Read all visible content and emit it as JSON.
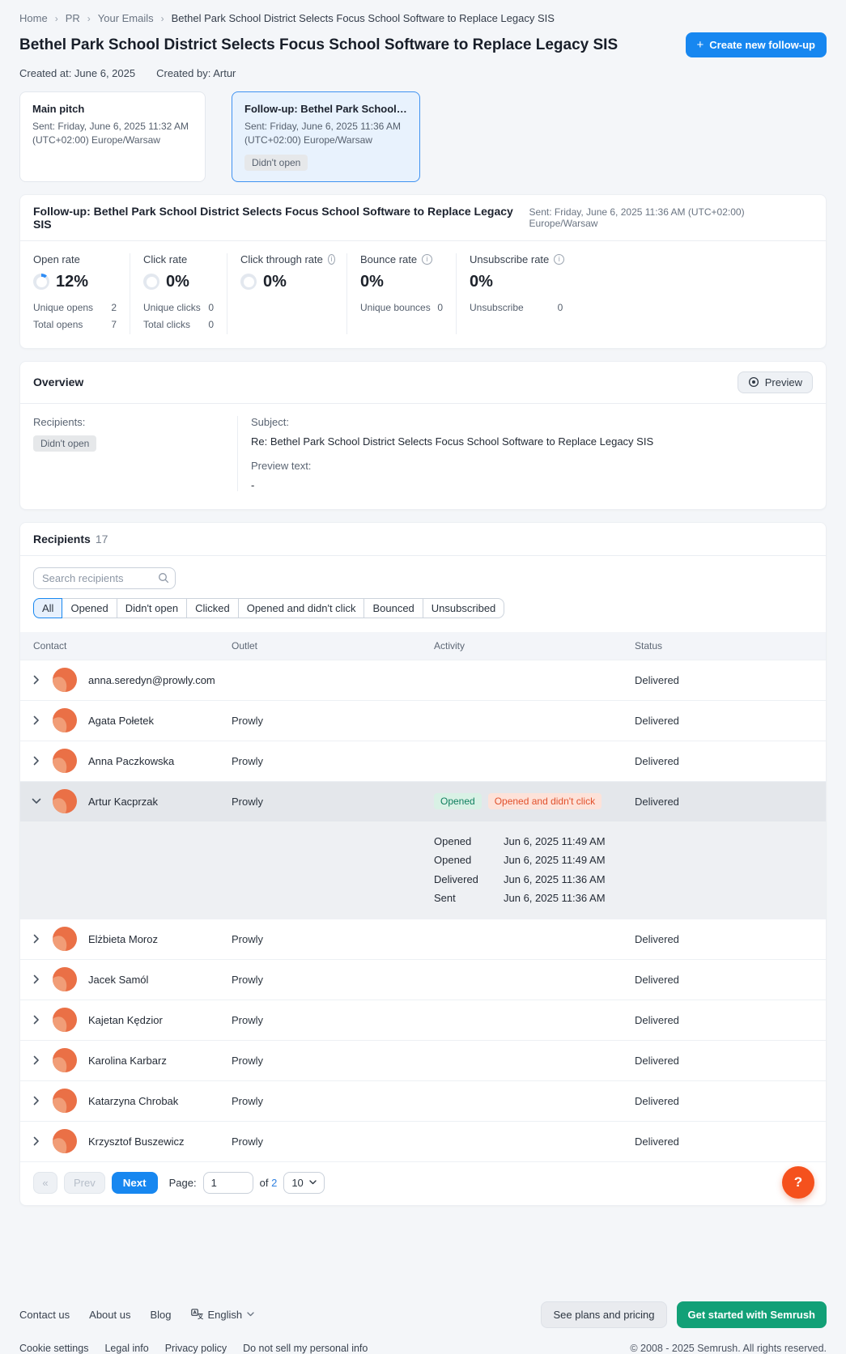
{
  "breadcrumb": {
    "items": [
      "Home",
      "PR",
      "Your Emails"
    ],
    "current": "Bethel Park School District Selects Focus School Software to Replace Legacy SIS"
  },
  "header": {
    "title": "Bethel Park School District Selects Focus School Software to Replace Legacy SIS",
    "create_button": "Create new follow-up",
    "created_at": "Created at: June 6, 2025",
    "created_by": "Created by: Artur"
  },
  "cards": [
    {
      "title": "Main pitch",
      "sent": "Sent: Friday, June 6, 2025 11:32 AM (UTC+02:00) Europe/Warsaw",
      "badge": null,
      "selected": false
    },
    {
      "title": "Follow-up: Bethel Park School Dist...",
      "sent": "Sent: Friday, June 6, 2025 11:36 AM (UTC+02:00) Europe/Warsaw",
      "badge": "Didn't open",
      "selected": true
    }
  ],
  "stats_panel": {
    "title": "Follow-up: Bethel Park School District Selects Focus School Software to Replace Legacy SIS",
    "sent": "Sent: Friday, June 6, 2025 11:36 AM (UTC+02:00) Europe/Warsaw",
    "metrics": [
      {
        "label": "Open rate",
        "info": false,
        "value": "12%",
        "donut": 12,
        "rows": [
          {
            "label": "Unique opens",
            "value": "2"
          },
          {
            "label": "Total opens",
            "value": "7"
          }
        ]
      },
      {
        "label": "Click rate",
        "info": false,
        "value": "0%",
        "donut": 0,
        "rows": [
          {
            "label": "Unique clicks",
            "value": "0"
          },
          {
            "label": "Total clicks",
            "value": "0"
          }
        ]
      },
      {
        "label": "Click through rate",
        "info": true,
        "value": "0%",
        "donut": 0,
        "rows": []
      },
      {
        "label": "Bounce rate",
        "info": true,
        "value": "0%",
        "donut": null,
        "rows": [
          {
            "label": "Unique bounces",
            "value": "0"
          }
        ]
      },
      {
        "label": "Unsubscribe rate",
        "info": true,
        "value": "0%",
        "donut": null,
        "rows": [
          {
            "label": "Unsubscribe",
            "value": "0"
          }
        ]
      }
    ]
  },
  "overview": {
    "title": "Overview",
    "preview_button": "Preview",
    "recipients_label": "Recipients:",
    "recipients_badge": "Didn't open",
    "subject_label": "Subject:",
    "subject": "Re: Bethel Park School District Selects Focus School Software to Replace Legacy SIS",
    "preview_text_label": "Preview text:",
    "preview_text": "-"
  },
  "recipients": {
    "title": "Recipients",
    "count": "17",
    "search_placeholder": "Search recipients",
    "filters": [
      "All",
      "Opened",
      "Didn't open",
      "Clicked",
      "Opened and didn't click",
      "Bounced",
      "Unsubscribed"
    ],
    "active_filter": "All",
    "columns": [
      "Contact",
      "Outlet",
      "Activity",
      "Status"
    ],
    "rows": [
      {
        "contact": "anna.seredyn@prowly.com",
        "outlet": "",
        "activity": [],
        "status": "Delivered",
        "expanded": false
      },
      {
        "contact": "Agata Połetek",
        "outlet": "Prowly",
        "activity": [],
        "status": "Delivered",
        "expanded": false
      },
      {
        "contact": "Anna Paczkowska",
        "outlet": "Prowly",
        "activity": [],
        "status": "Delivered",
        "expanded": false
      },
      {
        "contact": "Artur Kacprzak",
        "outlet": "Prowly",
        "activity": [
          {
            "label": "Opened",
            "type": "opened"
          },
          {
            "label": "Opened and didn't click",
            "type": "no-click"
          }
        ],
        "status": "Delivered",
        "expanded": true,
        "details": [
          {
            "event": "Opened",
            "time": "Jun 6, 2025 11:49 AM"
          },
          {
            "event": "Opened",
            "time": "Jun 6, 2025 11:49 AM"
          },
          {
            "event": "Delivered",
            "time": "Jun 6, 2025 11:36 AM"
          },
          {
            "event": "Sent",
            "time": "Jun 6, 2025 11:36 AM"
          }
        ]
      },
      {
        "contact": "Elżbieta Moroz",
        "outlet": "Prowly",
        "activity": [],
        "status": "Delivered",
        "expanded": false
      },
      {
        "contact": "Jacek Samól",
        "outlet": "Prowly",
        "activity": [],
        "status": "Delivered",
        "expanded": false
      },
      {
        "contact": "Kajetan Kędzior",
        "outlet": "Prowly",
        "activity": [],
        "status": "Delivered",
        "expanded": false
      },
      {
        "contact": "Karolina Karbarz",
        "outlet": "Prowly",
        "activity": [],
        "status": "Delivered",
        "expanded": false
      },
      {
        "contact": "Katarzyna Chrobak",
        "outlet": "Prowly",
        "activity": [],
        "status": "Delivered",
        "expanded": false
      },
      {
        "contact": "Krzysztof Buszewicz",
        "outlet": "Prowly",
        "activity": [],
        "status": "Delivered",
        "expanded": false
      }
    ],
    "pagination": {
      "first": "«",
      "prev": "Prev",
      "next": "Next",
      "page_label": "Page:",
      "page": "1",
      "of_label": "of",
      "total_pages": "2",
      "page_size": "10"
    }
  },
  "footer": {
    "links": [
      "Contact us",
      "About us",
      "Blog"
    ],
    "language": "English",
    "plans_button": "See plans and pricing",
    "get_started_button": "Get started with Semrush",
    "legal_links": [
      "Cookie settings",
      "Legal info",
      "Privacy policy",
      "Do not sell my personal info"
    ],
    "copyright": "© 2008 - 2025 Semrush. All rights reserved.",
    "help_label": "?"
  },
  "colors": {
    "accent_blue": "#1787f0",
    "link_blue": "#2f80e0",
    "green": "#12a077",
    "avatar_orange": "#ea7046",
    "help_orange": "#f5511d",
    "opened_badge_bg": "#d9f1e5",
    "opened_badge_text": "#0e7e5e",
    "no_click_badge_bg": "#fde2d9",
    "no_click_badge_text": "#e1502b",
    "neutral_badge_bg": "#e6e8ea",
    "page_bg": "#f4f6f9"
  }
}
